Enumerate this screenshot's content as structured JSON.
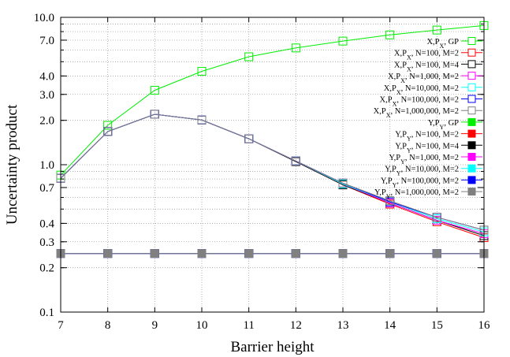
{
  "chart_data": {
    "type": "line",
    "title": "",
    "xlabel": "Barrier height",
    "ylabel": "Uncertainty product",
    "x": [
      7,
      8,
      9,
      10,
      11,
      12,
      13,
      14,
      15,
      16
    ],
    "xlim": [
      7,
      16
    ],
    "ylim": [
      0.1,
      10.0
    ],
    "yscale": "log",
    "grid": true,
    "legend_position": "top-right",
    "x_ticks": [
      "7",
      "8",
      "9",
      "10",
      "11",
      "12",
      "13",
      "14",
      "15",
      "16"
    ],
    "y_ticks": [
      {
        "value": 0.1,
        "label": "0.1"
      },
      {
        "value": 0.2,
        "label": "0.2"
      },
      {
        "value": 0.3,
        "label": "0.3"
      },
      {
        "value": 0.4,
        "label": "0.4"
      },
      {
        "value": 0.7,
        "label": "0.7"
      },
      {
        "value": 1.0,
        "label": "1.0"
      },
      {
        "value": 2.0,
        "label": "2.0"
      },
      {
        "value": 3.0,
        "label": "3.0"
      },
      {
        "value": 4.0,
        "label": "4.0"
      },
      {
        "value": 7.0,
        "label": "7.0"
      },
      {
        "value": 10.0,
        "label": "10.0"
      }
    ],
    "series": [
      {
        "name": "X,P_X, GP",
        "color": "#00ee00",
        "marker": "open-square",
        "values": [
          0.85,
          1.85,
          3.2,
          4.3,
          5.4,
          6.2,
          6.9,
          7.6,
          8.2,
          8.8
        ]
      },
      {
        "name": "X,P_X, N=100, M=2",
        "color": "#ff0000",
        "marker": "open-square",
        "values": [
          0.81,
          1.68,
          2.2,
          2.01,
          1.5,
          1.05,
          0.73,
          0.54,
          0.41,
          0.32
        ]
      },
      {
        "name": "X,P_X, N=100, M=4",
        "color": "#000000",
        "marker": "open-square",
        "values": [
          0.81,
          1.68,
          2.2,
          2.01,
          1.5,
          1.05,
          0.73,
          0.55,
          0.42,
          0.33
        ]
      },
      {
        "name": "X,P_X, N=1,000, M=2",
        "color": "#ff00ff",
        "marker": "open-square",
        "values": [
          0.81,
          1.68,
          2.2,
          2.01,
          1.5,
          1.06,
          0.74,
          0.55,
          0.42,
          0.34
        ]
      },
      {
        "name": "X,P_X, N=10,000, M=2",
        "color": "#00ffff",
        "marker": "open-square",
        "values": [
          0.81,
          1.68,
          2.2,
          2.01,
          1.5,
          1.06,
          0.74,
          0.56,
          0.43,
          0.35
        ]
      },
      {
        "name": "X,P_X, N=100,000, M=2",
        "color": "#0000ff",
        "marker": "open-square",
        "values": [
          0.81,
          1.68,
          2.2,
          2.01,
          1.5,
          1.06,
          0.75,
          0.56,
          0.44,
          0.36
        ]
      },
      {
        "name": "X,P_X, N=1,000,000, M=2",
        "color": "#808080",
        "marker": "open-square",
        "values": [
          0.81,
          1.68,
          2.2,
          2.01,
          1.5,
          1.06,
          0.75,
          0.57,
          0.44,
          0.36
        ]
      },
      {
        "name": "Y,P_Y, GP",
        "color": "#00ee00",
        "marker": "filled-square",
        "values": [
          0.25,
          0.25,
          0.25,
          0.25,
          0.25,
          0.25,
          0.25,
          0.25,
          0.25,
          0.25
        ]
      },
      {
        "name": "Y,P_Y, N=100, M=2",
        "color": "#ff0000",
        "marker": "filled-square",
        "values": [
          0.25,
          0.25,
          0.25,
          0.25,
          0.25,
          0.25,
          0.25,
          0.25,
          0.25,
          0.25
        ]
      },
      {
        "name": "Y,P_Y, N=100, M=4",
        "color": "#000000",
        "marker": "filled-square",
        "values": [
          0.25,
          0.25,
          0.25,
          0.25,
          0.25,
          0.25,
          0.25,
          0.25,
          0.25,
          0.25
        ]
      },
      {
        "name": "Y,P_Y, N=1,000, M=2",
        "color": "#ff00ff",
        "marker": "filled-square",
        "values": [
          0.25,
          0.25,
          0.25,
          0.25,
          0.25,
          0.25,
          0.25,
          0.25,
          0.25,
          0.25
        ]
      },
      {
        "name": "Y,P_Y, N=10,000, M=2",
        "color": "#00ffff",
        "marker": "filled-square",
        "values": [
          0.25,
          0.25,
          0.25,
          0.25,
          0.25,
          0.25,
          0.25,
          0.25,
          0.25,
          0.25
        ]
      },
      {
        "name": "Y,P_Y, N=100,000, M=2",
        "color": "#0000ff",
        "marker": "filled-square",
        "values": [
          0.25,
          0.25,
          0.25,
          0.25,
          0.25,
          0.25,
          0.25,
          0.25,
          0.25,
          0.25
        ]
      },
      {
        "name": "Y,P_Y, N=1,000,000, M=2",
        "color": "#808080",
        "marker": "filled-square",
        "values": [
          0.25,
          0.25,
          0.25,
          0.25,
          0.25,
          0.25,
          0.25,
          0.25,
          0.25,
          0.25
        ]
      }
    ]
  }
}
